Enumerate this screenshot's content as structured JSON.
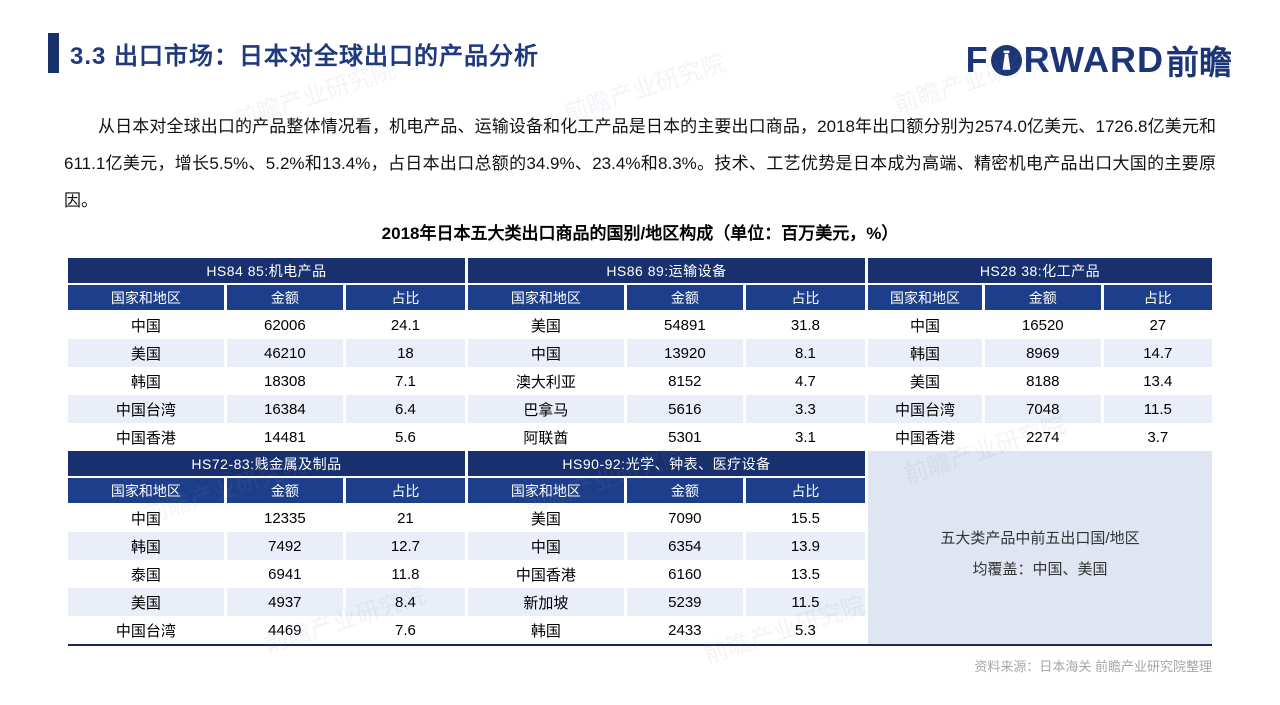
{
  "header": {
    "title": "3.3 出口市场：日本对全球出口的产品分析",
    "logo": {
      "f": "F",
      "rward": "RWARD",
      "cn": "前瞻"
    }
  },
  "intro": "从日本对全球出口的产品整体情况看，机电产品、运输设备和化工产品是日本的主要出口商品，2018年出口额分别为2574.0亿美元、1726.8亿美元和611.1亿美元，增长5.5%、5.2%和13.4%，占日本出口总额的34.9%、23.4%和8.3%。技术、工艺优势是日本成为高端、精密机电产品出口大国的主要原因。",
  "table": {
    "title": "2018年日本五大类出口商品的国别/地区构成（单位：百万美元，%）",
    "columns": [
      "国家和地区",
      "金额",
      "占比"
    ],
    "sections": [
      {
        "group": "HS84 85:机电产品",
        "rows": [
          [
            "中国",
            "62006",
            "24.1"
          ],
          [
            "美国",
            "46210",
            "18"
          ],
          [
            "韩国",
            "18308",
            "7.1"
          ],
          [
            "中国台湾",
            "16384",
            "6.4"
          ],
          [
            "中国香港",
            "14481",
            "5.6"
          ]
        ]
      },
      {
        "group": "HS86 89:运输设备",
        "rows": [
          [
            "美国",
            "54891",
            "31.8"
          ],
          [
            "中国",
            "13920",
            "8.1"
          ],
          [
            "澳大利亚",
            "8152",
            "4.7"
          ],
          [
            "巴拿马",
            "5616",
            "3.3"
          ],
          [
            "阿联酋",
            "5301",
            "3.1"
          ]
        ]
      },
      {
        "group": "HS28 38:化工产品",
        "rows": [
          [
            "中国",
            "16520",
            "27"
          ],
          [
            "韩国",
            "8969",
            "14.7"
          ],
          [
            "美国",
            "8188",
            "13.4"
          ],
          [
            "中国台湾",
            "7048",
            "11.5"
          ],
          [
            "中国香港",
            "2274",
            "3.7"
          ]
        ]
      },
      {
        "group": "HS72-83:贱金属及制品",
        "rows": [
          [
            "中国",
            "12335",
            "21"
          ],
          [
            "韩国",
            "7492",
            "12.7"
          ],
          [
            "泰国",
            "6941",
            "11.8"
          ],
          [
            "美国",
            "4937",
            "8.4"
          ],
          [
            "中国台湾",
            "4469",
            "7.6"
          ]
        ]
      },
      {
        "group": "HS90-92:光学、钟表、医疗设备",
        "rows": [
          [
            "美国",
            "7090",
            "15.5"
          ],
          [
            "中国",
            "6354",
            "13.9"
          ],
          [
            "中国香港",
            "6160",
            "13.5"
          ],
          [
            "新加坡",
            "5239",
            "11.5"
          ],
          [
            "韩国",
            "2433",
            "5.3"
          ]
        ]
      }
    ],
    "note": [
      "五大类产品中前五出口国/地区",
      "均覆盖：中国、美国"
    ]
  },
  "source": "资料来源：日本海关  前瞻产业研究院整理",
  "watermark": "前瞻产业研究院",
  "colors": {
    "navy_title": "#1e3a7d",
    "group_header_bg": "#18316e",
    "sub_header_bg": "#1d3e8a",
    "row_alt_bg": "#e9eef8",
    "note_bg": "#dfe5f1",
    "source_text": "#a6a6a6"
  }
}
